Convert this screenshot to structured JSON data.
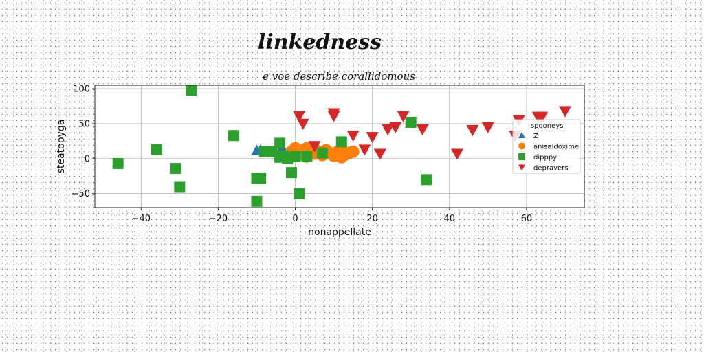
{
  "chart_data": {
    "type": "scatter",
    "suptitle": "linkedness",
    "title": "e voe describe corallidomous",
    "xlabel": "nonappellate",
    "ylabel": "steatopyga",
    "xlim": [
      -52,
      75
    ],
    "ylim": [
      -70,
      105
    ],
    "xticks": [
      -40,
      -20,
      0,
      20,
      40,
      60
    ],
    "yticks": [
      -50,
      0,
      50,
      100
    ],
    "grid": true,
    "legend": {
      "title": "spooneys",
      "placement": "right"
    },
    "series": [
      {
        "name": "Z",
        "marker": "triangle-up",
        "color": "#1f77b4",
        "points": [
          [
            -10,
            12
          ],
          [
            -9,
            13
          ],
          [
            -4,
            10
          ],
          [
            -3,
            12
          ]
        ]
      },
      {
        "name": "anisaldoxime",
        "marker": "circle",
        "color": "#ff7f0e",
        "points": [
          [
            -1,
            10
          ],
          [
            0,
            15
          ],
          [
            1,
            12
          ],
          [
            2,
            6
          ],
          [
            3,
            15
          ],
          [
            4,
            8
          ],
          [
            5,
            14
          ],
          [
            6,
            10
          ],
          [
            7,
            5
          ],
          [
            8,
            12
          ],
          [
            9,
            8
          ],
          [
            10,
            4
          ],
          [
            11,
            10
          ],
          [
            12,
            14
          ],
          [
            13,
            6
          ],
          [
            14,
            8
          ],
          [
            15,
            10
          ],
          [
            12,
            2
          ],
          [
            3,
            3
          ],
          [
            5,
            7
          ]
        ]
      },
      {
        "name": "dipppy",
        "marker": "square",
        "color": "#2ca02c",
        "points": [
          [
            -27,
            98
          ],
          [
            -46,
            -7
          ],
          [
            -36,
            13
          ],
          [
            -31,
            -14
          ],
          [
            -30,
            -41
          ],
          [
            -16,
            33
          ],
          [
            -10,
            -28
          ],
          [
            -9,
            -28
          ],
          [
            -10,
            -61
          ],
          [
            -8,
            10
          ],
          [
            -6,
            10
          ],
          [
            -4,
            22
          ],
          [
            -4,
            2
          ],
          [
            -3,
            4
          ],
          [
            -2,
            0
          ],
          [
            -1,
            -20
          ],
          [
            1,
            -50
          ],
          [
            0,
            3
          ],
          [
            3,
            3
          ],
          [
            7,
            8
          ],
          [
            12,
            24
          ],
          [
            30,
            52
          ],
          [
            34,
            -30
          ]
        ]
      },
      {
        "name": "depravers",
        "marker": "triangle-down",
        "color": "#d62728",
        "points": [
          [
            1,
            61
          ],
          [
            2,
            50
          ],
          [
            10,
            65
          ],
          [
            10,
            61
          ],
          [
            5,
            18
          ],
          [
            15,
            33
          ],
          [
            18,
            13
          ],
          [
            20,
            31
          ],
          [
            22,
            7
          ],
          [
            24,
            42
          ],
          [
            26,
            45
          ],
          [
            28,
            61
          ],
          [
            33,
            42
          ],
          [
            42,
            7
          ],
          [
            46,
            41
          ],
          [
            50,
            45
          ],
          [
            57,
            33
          ],
          [
            58,
            55
          ],
          [
            63,
            60
          ],
          [
            64,
            60
          ],
          [
            70,
            68
          ]
        ]
      }
    ]
  }
}
